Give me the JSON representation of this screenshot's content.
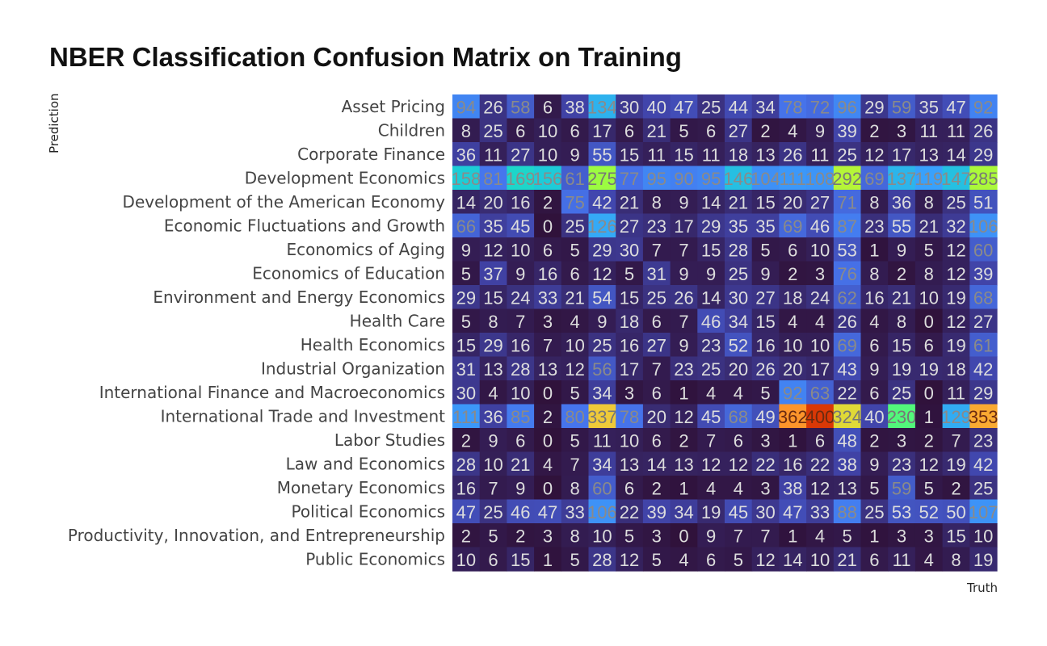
{
  "chart_data": {
    "type": "heatmap",
    "title": "NBER Classification Confusion Matrix on Training",
    "xlabel": "Truth",
    "ylabel": "Prediction",
    "rows": [
      "Asset Pricing",
      "Children",
      "Corporate Finance",
      "Development Economics",
      "Development of the American Economy",
      "Economic Fluctuations and Growth",
      "Economics of Aging",
      "Economics of Education",
      "Environment and Energy Economics",
      "Health Care",
      "Health Economics",
      "Industrial Organization",
      "International Finance and Macroeconomics",
      "International Trade and Investment",
      "Labor Studies",
      "Law and Economics",
      "Monetary Economics",
      "Political Economics",
      "Productivity, Innovation, and Entrepreneurship",
      "Public Economics"
    ],
    "values": [
      [
        94,
        26,
        58,
        6,
        38,
        134,
        30,
        40,
        47,
        25,
        44,
        34,
        78,
        72,
        96,
        29,
        59,
        35,
        47,
        92
      ],
      [
        8,
        25,
        6,
        10,
        6,
        17,
        6,
        21,
        5,
        6,
        27,
        2,
        4,
        9,
        39,
        2,
        3,
        11,
        11,
        26
      ],
      [
        36,
        11,
        27,
        10,
        9,
        55,
        15,
        11,
        15,
        11,
        18,
        13,
        26,
        11,
        25,
        12,
        17,
        13,
        14,
        29
      ],
      [
        158,
        81,
        169,
        156,
        61,
        275,
        77,
        95,
        90,
        95,
        146,
        104,
        111,
        108,
        292,
        69,
        137,
        119,
        147,
        285
      ],
      [
        14,
        20,
        16,
        2,
        75,
        42,
        21,
        8,
        9,
        14,
        21,
        15,
        20,
        27,
        71,
        8,
        36,
        8,
        25,
        51
      ],
      [
        66,
        35,
        45,
        0,
        25,
        126,
        27,
        23,
        17,
        29,
        35,
        35,
        69,
        46,
        87,
        23,
        55,
        21,
        32,
        106
      ],
      [
        9,
        12,
        10,
        6,
        5,
        29,
        30,
        7,
        7,
        15,
        28,
        5,
        6,
        10,
        53,
        1,
        9,
        5,
        12,
        60
      ],
      [
        5,
        37,
        9,
        16,
        6,
        12,
        5,
        31,
        9,
        9,
        25,
        9,
        2,
        3,
        76,
        8,
        2,
        8,
        12,
        39
      ],
      [
        29,
        15,
        24,
        33,
        21,
        54,
        15,
        25,
        26,
        14,
        30,
        27,
        18,
        24,
        62,
        16,
        21,
        10,
        19,
        68
      ],
      [
        5,
        8,
        7,
        3,
        4,
        9,
        18,
        6,
        7,
        46,
        34,
        15,
        4,
        4,
        26,
        4,
        8,
        0,
        12,
        27
      ],
      [
        15,
        29,
        16,
        7,
        10,
        25,
        16,
        27,
        9,
        23,
        52,
        16,
        10,
        10,
        69,
        6,
        15,
        6,
        19,
        61
      ],
      [
        31,
        13,
        28,
        13,
        12,
        56,
        17,
        7,
        23,
        25,
        20,
        26,
        20,
        17,
        43,
        9,
        19,
        19,
        18,
        42
      ],
      [
        30,
        4,
        10,
        0,
        5,
        34,
        3,
        6,
        1,
        4,
        4,
        5,
        92,
        63,
        22,
        6,
        25,
        0,
        11,
        29
      ],
      [
        111,
        36,
        85,
        2,
        80,
        337,
        78,
        20,
        12,
        45,
        68,
        49,
        362,
        400,
        324,
        40,
        230,
        1,
        129,
        353
      ],
      [
        2,
        9,
        6,
        0,
        5,
        11,
        10,
        6,
        2,
        7,
        6,
        3,
        1,
        6,
        48,
        2,
        3,
        2,
        7,
        23
      ],
      [
        28,
        10,
        21,
        4,
        7,
        34,
        13,
        14,
        13,
        12,
        12,
        22,
        16,
        22,
        38,
        9,
        23,
        12,
        19,
        42
      ],
      [
        16,
        7,
        9,
        0,
        8,
        60,
        6,
        2,
        1,
        4,
        4,
        3,
        38,
        12,
        13,
        5,
        59,
        5,
        2,
        25
      ],
      [
        47,
        25,
        46,
        47,
        33,
        106,
        22,
        39,
        34,
        19,
        45,
        30,
        47,
        33,
        88,
        25,
        53,
        52,
        50,
        107
      ],
      [
        2,
        5,
        2,
        3,
        8,
        10,
        5,
        3,
        0,
        9,
        7,
        7,
        1,
        4,
        5,
        1,
        3,
        3,
        15,
        10
      ],
      [
        10,
        6,
        15,
        1,
        5,
        28,
        12,
        5,
        4,
        6,
        5,
        12,
        14,
        10,
        21,
        6,
        11,
        4,
        8,
        19
      ]
    ],
    "vmin": 0,
    "vmax": 400,
    "colormap": "turbo",
    "x_tick_labels": [],
    "grid": false,
    "legend": "none"
  }
}
